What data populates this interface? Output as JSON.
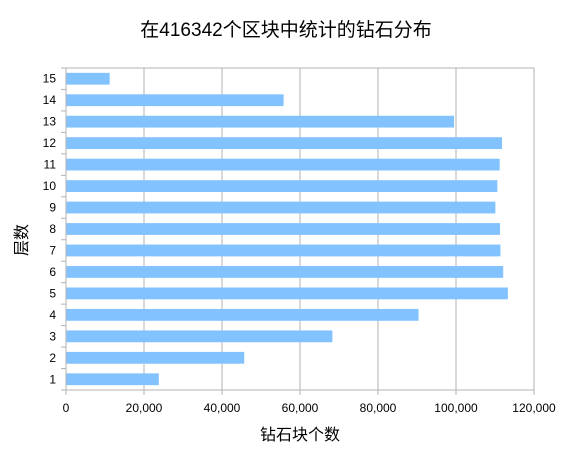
{
  "chart_data": {
    "type": "bar",
    "orientation": "horizontal",
    "title": "在416342个区块中统计的钻石分布",
    "xlabel": "钻石块个数",
    "ylabel": "层数",
    "categories": [
      "1",
      "2",
      "3",
      "4",
      "5",
      "6",
      "7",
      "8",
      "9",
      "10",
      "11",
      "12",
      "13",
      "14",
      "15"
    ],
    "values": [
      23800,
      45700,
      68300,
      90400,
      113300,
      112100,
      111400,
      111300,
      110100,
      110600,
      111200,
      111800,
      99500,
      55800,
      11200
    ],
    "xlim": [
      0,
      120000
    ],
    "xticks": [
      "0",
      "20,000",
      "40,000",
      "60,000",
      "80,000",
      "100,000",
      "120,000"
    ],
    "grid": true,
    "legend": "none",
    "bar_color": "#82c3ff"
  }
}
